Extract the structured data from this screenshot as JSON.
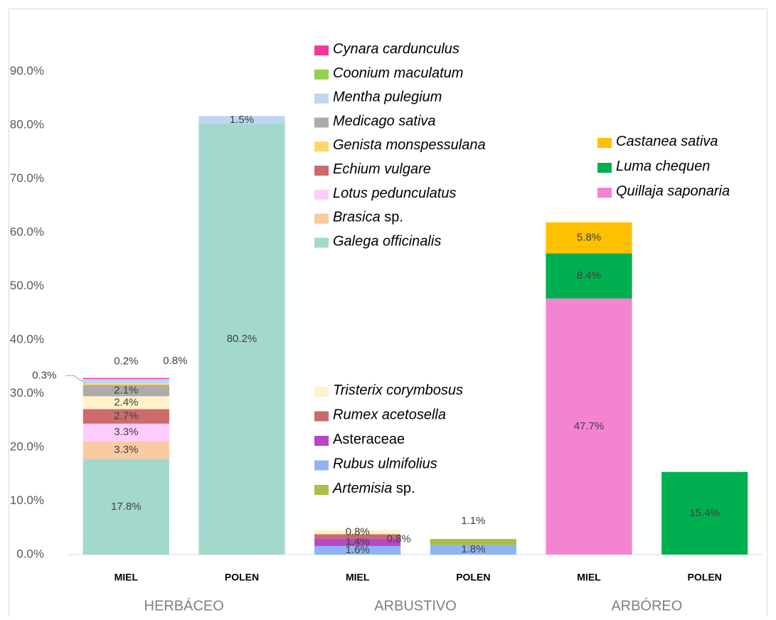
{
  "chart_data": {
    "type": "stacked_bar",
    "categories": [
      "MIEL",
      "POLEN",
      "MIEL",
      "POLEN",
      "MIEL",
      "POLEN"
    ],
    "groups": [
      "HERBÁCEO",
      "ARBUSTIVO",
      "ARBÓREO"
    ],
    "ylim": [
      0,
      100
    ],
    "yticks": [
      {
        "value": 0,
        "label": "0.0%"
      },
      {
        "value": 10,
        "label": "10.0%"
      },
      {
        "value": 20,
        "label": "20.0%"
      },
      {
        "value": 30,
        "label": "30.0%"
      },
      {
        "value": 40,
        "label": "40.0%"
      },
      {
        "value": 50,
        "label": "50.0%"
      },
      {
        "value": 60,
        "label": "60.0%"
      },
      {
        "value": 70,
        "label": "70.0%"
      },
      {
        "value": 80,
        "label": "80.0%"
      },
      {
        "value": 90,
        "label": "90.0%"
      }
    ],
    "series": [
      {
        "name": "Galega officinalis",
        "color": "#a3d9cc",
        "values": [
          17.8,
          80.2,
          null,
          null,
          null,
          null
        ],
        "value_labels": [
          "17.8%",
          "80.2%",
          null,
          null,
          null,
          null
        ]
      },
      {
        "name": "Brasica sp.",
        "color": "#f8cba0",
        "values": [
          3.3,
          null,
          null,
          null,
          null,
          null
        ],
        "value_labels": [
          "3.3%",
          null,
          null,
          null,
          null,
          null
        ]
      },
      {
        "name": "Lotus pedunculatus",
        "color": "#ffccff",
        "values": [
          3.3,
          null,
          null,
          null,
          null,
          null
        ],
        "value_labels": [
          "3.3%",
          null,
          null,
          null,
          null,
          null
        ]
      },
      {
        "name": "Echium vulgare",
        "color": "#cc6b6b",
        "values": [
          2.7,
          null,
          null,
          null,
          null,
          null
        ],
        "value_labels": [
          "2.7%",
          null,
          null,
          null,
          null,
          null
        ]
      },
      {
        "name": "Rubus ulmifolius",
        "color": "#8fb4f5",
        "values": [
          null,
          null,
          1.6,
          1.8,
          null,
          null
        ],
        "value_labels": [
          null,
          null,
          "1.6%",
          "1.8%",
          null,
          null
        ]
      },
      {
        "name": "Asteraceae",
        "color": "#b946c4",
        "values": [
          null,
          null,
          1.4,
          null,
          null,
          null
        ],
        "value_labels": [
          null,
          null,
          "1.4%",
          null,
          null,
          null
        ]
      },
      {
        "name": "Rumex acetosella",
        "color": "#c96b6b",
        "values": [
          null,
          null,
          0.8,
          null,
          null,
          null
        ],
        "value_labels": [
          null,
          null,
          "0.8%",
          null,
          null,
          null
        ]
      },
      {
        "name": "Artemisia sp.",
        "color": "#aebd44",
        "values": [
          null,
          null,
          null,
          1.1,
          null,
          null
        ],
        "value_labels": [
          null,
          null,
          null,
          "1.1%",
          null,
          null
        ]
      },
      {
        "name": "Tristerix corymbosus",
        "color": "#fff2cc",
        "values": [
          2.4,
          null,
          0.8,
          null,
          null,
          null
        ],
        "value_labels": [
          "2.4%",
          null,
          "0.8%",
          null,
          null,
          null
        ]
      },
      {
        "name": "Medicago sativa",
        "color": "#aeaaaa",
        "values": [
          2.1,
          null,
          null,
          null,
          null,
          null
        ],
        "value_labels": [
          "2.1%",
          null,
          null,
          null,
          null,
          null
        ]
      },
      {
        "name": "Genista monspessulana",
        "color": "#ffd966",
        "values": [
          0.3,
          null,
          null,
          null,
          null,
          null
        ],
        "value_labels": [
          "0.3%",
          null,
          null,
          null,
          null,
          null
        ]
      },
      {
        "name": "Mentha pulegium",
        "color": "#bdd7ee",
        "values": [
          0.8,
          1.5,
          null,
          null,
          null,
          null
        ],
        "value_labels": [
          "0.8%",
          "1.5%",
          null,
          null,
          null,
          null
        ]
      },
      {
        "name": "Cynara cardunculus",
        "color": "#f5379b",
        "values": [
          0.2,
          null,
          null,
          null,
          null,
          null
        ],
        "value_labels": [
          "0.2%",
          null,
          null,
          null,
          null,
          null
        ]
      },
      {
        "name": "Coonium maculatum",
        "color": "#92d050",
        "values": [
          null,
          null,
          null,
          null,
          null,
          null
        ]
      },
      {
        "name": "Quillaja saponaria",
        "color": "#f384d0",
        "values": [
          null,
          null,
          null,
          null,
          47.7,
          null
        ],
        "value_labels": [
          null,
          null,
          null,
          null,
          "47.7%",
          null
        ]
      },
      {
        "name": "Luma chequen",
        "color": "#00b050",
        "values": [
          null,
          null,
          null,
          null,
          8.4,
          15.4
        ],
        "value_labels": [
          null,
          null,
          null,
          null,
          "8.4%",
          "15.4%"
        ]
      },
      {
        "name": "Castanea sativa",
        "color": "#ffc000",
        "values": [
          null,
          null,
          null,
          null,
          5.8,
          null
        ],
        "value_labels": [
          null,
          null,
          null,
          null,
          "5.8%",
          null
        ]
      }
    ]
  }
}
